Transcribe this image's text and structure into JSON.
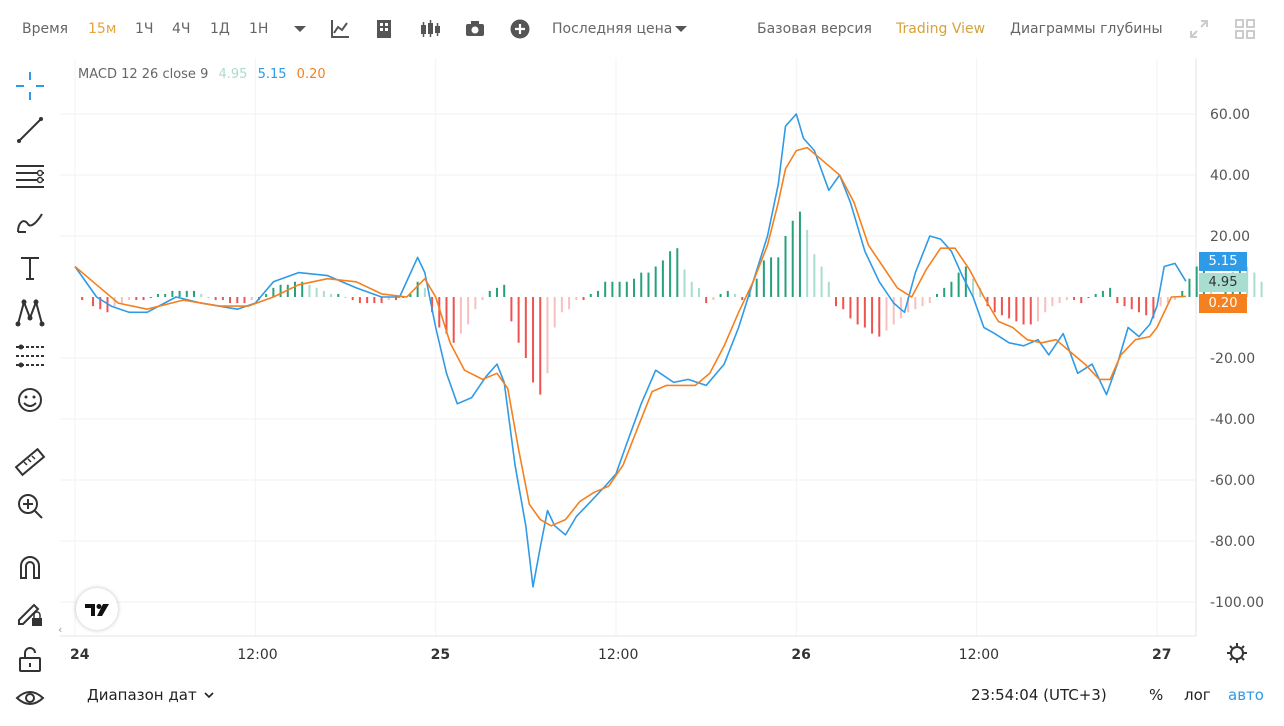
{
  "toolbar": {
    "time_label": "Время",
    "intervals": [
      "15м",
      "1Ч",
      "4Ч",
      "1Д",
      "1Н"
    ],
    "active_interval": "15м",
    "price_type": "Последняя цена",
    "views": [
      "Базовая версия",
      "Trading View",
      "Диаграммы глубины"
    ],
    "active_view": "Trading View"
  },
  "legend": {
    "indicator": "MACD 12 26 close 9",
    "hist_value": "4.95",
    "macd_value": "5.15",
    "signal_value": "0.20"
  },
  "price_tags": {
    "macd": "5.15",
    "hist": "4.95",
    "signal": "0.20"
  },
  "colors": {
    "macd_line": "#2f9be6",
    "signal_line": "#f5801f",
    "hist_pos_strong": "#26a17b",
    "hist_pos_weak": "#a9ddd0",
    "hist_neg_strong": "#ef5350",
    "hist_neg_weak": "#f7c0bf",
    "active": "#e8a33a"
  },
  "chart_data": {
    "type": "line",
    "y_ticks": [
      "60.00",
      "40.00",
      "20.00",
      "-20.00",
      "-40.00",
      "-60.00",
      "-80.00",
      "-100.00"
    ],
    "ylim": [
      -110,
      70
    ],
    "x_ticks": [
      "24",
      "12:00",
      "25",
      "12:00",
      "26",
      "12:00",
      "27"
    ],
    "x_tick_pos": [
      0,
      0.5,
      1,
      1.5,
      2,
      2.5,
      3
    ],
    "series": [
      {
        "name": "MACD",
        "values": [
          [
            0,
            10
          ],
          [
            0.06,
            0
          ],
          [
            0.1,
            -3
          ],
          [
            0.15,
            -5
          ],
          [
            0.2,
            -5
          ],
          [
            0.28,
            0
          ],
          [
            0.35,
            -2
          ],
          [
            0.45,
            -4
          ],
          [
            0.5,
            -2
          ],
          [
            0.55,
            5
          ],
          [
            0.62,
            8
          ],
          [
            0.7,
            7
          ],
          [
            0.78,
            3
          ],
          [
            0.85,
            0
          ],
          [
            0.9,
            0
          ],
          [
            0.95,
            13
          ],
          [
            0.97,
            8
          ],
          [
            1.0,
            -10
          ],
          [
            1.03,
            -25
          ],
          [
            1.06,
            -35
          ],
          [
            1.1,
            -33
          ],
          [
            1.14,
            -26
          ],
          [
            1.17,
            -22
          ],
          [
            1.19,
            -28
          ],
          [
            1.22,
            -55
          ],
          [
            1.25,
            -75
          ],
          [
            1.27,
            -95
          ],
          [
            1.29,
            -82
          ],
          [
            1.31,
            -70
          ],
          [
            1.33,
            -75
          ],
          [
            1.36,
            -78
          ],
          [
            1.39,
            -72
          ],
          [
            1.43,
            -67
          ],
          [
            1.47,
            -62
          ],
          [
            1.5,
            -58
          ],
          [
            1.53,
            -48
          ],
          [
            1.57,
            -35
          ],
          [
            1.61,
            -24
          ],
          [
            1.66,
            -28
          ],
          [
            1.7,
            -27
          ],
          [
            1.75,
            -29
          ],
          [
            1.8,
            -22
          ],
          [
            1.84,
            -10
          ],
          [
            1.88,
            5
          ],
          [
            1.92,
            20
          ],
          [
            1.95,
            37
          ],
          [
            1.97,
            56
          ],
          [
            2.0,
            60
          ],
          [
            2.02,
            52
          ],
          [
            2.05,
            48
          ],
          [
            2.09,
            35
          ],
          [
            2.12,
            40
          ],
          [
            2.15,
            31
          ],
          [
            2.19,
            15
          ],
          [
            2.23,
            5
          ],
          [
            2.27,
            -2
          ],
          [
            2.3,
            -5
          ],
          [
            2.33,
            8
          ],
          [
            2.37,
            20
          ],
          [
            2.4,
            19
          ],
          [
            2.43,
            15
          ],
          [
            2.46,
            7
          ],
          [
            2.49,
            0
          ],
          [
            2.52,
            -10
          ],
          [
            2.55,
            -12
          ],
          [
            2.59,
            -15
          ],
          [
            2.63,
            -16
          ],
          [
            2.67,
            -14
          ],
          [
            2.7,
            -19
          ],
          [
            2.74,
            -12
          ],
          [
            2.78,
            -25
          ],
          [
            2.82,
            -22
          ],
          [
            2.86,
            -32
          ],
          [
            2.89,
            -22
          ],
          [
            2.92,
            -10
          ],
          [
            2.95,
            -13
          ],
          [
            2.98,
            -9
          ],
          [
            3.0,
            -3
          ],
          [
            3.02,
            10
          ],
          [
            3.05,
            11
          ],
          [
            3.08,
            5.15
          ]
        ]
      },
      {
        "name": "Signal",
        "values": [
          [
            0,
            10
          ],
          [
            0.06,
            4
          ],
          [
            0.12,
            -2
          ],
          [
            0.2,
            -4
          ],
          [
            0.3,
            -1
          ],
          [
            0.4,
            -3
          ],
          [
            0.48,
            -3
          ],
          [
            0.55,
            0
          ],
          [
            0.62,
            4
          ],
          [
            0.7,
            6
          ],
          [
            0.78,
            5
          ],
          [
            0.85,
            1
          ],
          [
            0.92,
            0
          ],
          [
            0.97,
            6
          ],
          [
            1.0,
            0
          ],
          [
            1.04,
            -15
          ],
          [
            1.08,
            -24
          ],
          [
            1.13,
            -27
          ],
          [
            1.17,
            -25
          ],
          [
            1.2,
            -30
          ],
          [
            1.23,
            -50
          ],
          [
            1.26,
            -68
          ],
          [
            1.29,
            -73
          ],
          [
            1.32,
            -75
          ],
          [
            1.36,
            -73
          ],
          [
            1.4,
            -67
          ],
          [
            1.44,
            -64
          ],
          [
            1.48,
            -62
          ],
          [
            1.52,
            -55
          ],
          [
            1.56,
            -43
          ],
          [
            1.6,
            -31
          ],
          [
            1.64,
            -29
          ],
          [
            1.68,
            -29
          ],
          [
            1.72,
            -29
          ],
          [
            1.76,
            -25
          ],
          [
            1.8,
            -16
          ],
          [
            1.84,
            -5
          ],
          [
            1.88,
            5
          ],
          [
            1.92,
            17
          ],
          [
            1.95,
            31
          ],
          [
            1.97,
            42
          ],
          [
            2.0,
            48
          ],
          [
            2.03,
            49
          ],
          [
            2.06,
            46
          ],
          [
            2.09,
            43
          ],
          [
            2.12,
            40
          ],
          [
            2.16,
            31
          ],
          [
            2.2,
            17
          ],
          [
            2.24,
            10
          ],
          [
            2.28,
            3
          ],
          [
            2.32,
            0
          ],
          [
            2.36,
            9
          ],
          [
            2.4,
            16
          ],
          [
            2.44,
            16
          ],
          [
            2.48,
            9
          ],
          [
            2.52,
            0
          ],
          [
            2.56,
            -8
          ],
          [
            2.6,
            -10
          ],
          [
            2.64,
            -14
          ],
          [
            2.68,
            -15
          ],
          [
            2.72,
            -14
          ],
          [
            2.76,
            -18
          ],
          [
            2.8,
            -22
          ],
          [
            2.84,
            -27
          ],
          [
            2.87,
            -27
          ],
          [
            2.9,
            -19
          ],
          [
            2.94,
            -14
          ],
          [
            2.98,
            -13
          ],
          [
            3.0,
            -10
          ],
          [
            3.04,
            0
          ],
          [
            3.08,
            0.2
          ]
        ]
      }
    ],
    "histogram": [
      [
        0.02,
        -1
      ],
      [
        0.05,
        -3
      ],
      [
        0.07,
        -4
      ],
      [
        0.09,
        -5
      ],
      [
        0.11,
        -3
      ],
      [
        0.13,
        -2
      ],
      [
        0.15,
        -1
      ],
      [
        0.17,
        -1
      ],
      [
        0.19,
        -1
      ],
      [
        0.21,
        0
      ],
      [
        0.23,
        1
      ],
      [
        0.25,
        1
      ],
      [
        0.27,
        2
      ],
      [
        0.29,
        2
      ],
      [
        0.31,
        2
      ],
      [
        0.33,
        2
      ],
      [
        0.35,
        1
      ],
      [
        0.37,
        0
      ],
      [
        0.39,
        -1
      ],
      [
        0.41,
        -1
      ],
      [
        0.43,
        -2
      ],
      [
        0.45,
        -2
      ],
      [
        0.47,
        -2
      ],
      [
        0.49,
        -1
      ],
      [
        0.51,
        -1
      ],
      [
        0.53,
        1
      ],
      [
        0.55,
        3
      ],
      [
        0.57,
        4
      ],
      [
        0.59,
        4
      ],
      [
        0.61,
        5
      ],
      [
        0.63,
        5
      ],
      [
        0.65,
        4
      ],
      [
        0.67,
        3
      ],
      [
        0.69,
        2
      ],
      [
        0.71,
        1
      ],
      [
        0.73,
        1
      ],
      [
        0.75,
        0
      ],
      [
        0.77,
        -1
      ],
      [
        0.79,
        -2
      ],
      [
        0.81,
        -2
      ],
      [
        0.83,
        -2
      ],
      [
        0.85,
        -2
      ],
      [
        0.87,
        -1
      ],
      [
        0.89,
        -1
      ],
      [
        0.91,
        0
      ],
      [
        0.93,
        1
      ],
      [
        0.95,
        5
      ],
      [
        0.97,
        3
      ],
      [
        0.99,
        -5
      ],
      [
        1.01,
        -10
      ],
      [
        1.03,
        -12
      ],
      [
        1.05,
        -15
      ],
      [
        1.07,
        -12
      ],
      [
        1.09,
        -9
      ],
      [
        1.11,
        -4
      ],
      [
        1.13,
        -1
      ],
      [
        1.15,
        2
      ],
      [
        1.17,
        3
      ],
      [
        1.19,
        4
      ],
      [
        1.21,
        -8
      ],
      [
        1.23,
        -15
      ],
      [
        1.25,
        -20
      ],
      [
        1.27,
        -28
      ],
      [
        1.29,
        -32
      ],
      [
        1.31,
        -25
      ],
      [
        1.33,
        -10
      ],
      [
        1.35,
        -5
      ],
      [
        1.37,
        -4
      ],
      [
        1.39,
        -1
      ],
      [
        1.41,
        -1
      ],
      [
        1.43,
        1
      ],
      [
        1.45,
        2
      ],
      [
        1.47,
        5
      ],
      [
        1.49,
        5
      ],
      [
        1.51,
        5
      ],
      [
        1.53,
        5
      ],
      [
        1.55,
        6
      ],
      [
        1.57,
        8
      ],
      [
        1.59,
        8
      ],
      [
        1.61,
        10
      ],
      [
        1.63,
        12
      ],
      [
        1.65,
        15
      ],
      [
        1.67,
        16
      ],
      [
        1.69,
        9
      ],
      [
        1.71,
        5
      ],
      [
        1.73,
        3
      ],
      [
        1.75,
        -2
      ],
      [
        1.77,
        -1
      ],
      [
        1.79,
        1
      ],
      [
        1.81,
        2
      ],
      [
        1.83,
        1
      ],
      [
        1.85,
        -1
      ],
      [
        1.87,
        2
      ],
      [
        1.89,
        6
      ],
      [
        1.91,
        12
      ],
      [
        1.93,
        13
      ],
      [
        1.95,
        13
      ],
      [
        1.97,
        20
      ],
      [
        1.99,
        25
      ],
      [
        2.01,
        28
      ],
      [
        2.03,
        22
      ],
      [
        2.05,
        14
      ],
      [
        2.07,
        10
      ],
      [
        2.09,
        5
      ],
      [
        2.11,
        -3
      ],
      [
        2.13,
        -4
      ],
      [
        2.15,
        -7
      ],
      [
        2.17,
        -9
      ],
      [
        2.19,
        -10
      ],
      [
        2.21,
        -12
      ],
      [
        2.23,
        -13
      ],
      [
        2.25,
        -11
      ],
      [
        2.27,
        -9
      ],
      [
        2.29,
        -7
      ],
      [
        2.31,
        -5
      ],
      [
        2.33,
        -4
      ],
      [
        2.35,
        -3
      ],
      [
        2.37,
        -2
      ],
      [
        2.39,
        1
      ],
      [
        2.41,
        3
      ],
      [
        2.43,
        5
      ],
      [
        2.45,
        8
      ],
      [
        2.47,
        10
      ],
      [
        2.49,
        6
      ],
      [
        2.51,
        3
      ],
      [
        2.53,
        -3
      ],
      [
        2.55,
        -5
      ],
      [
        2.57,
        -6
      ],
      [
        2.59,
        -7
      ],
      [
        2.61,
        -8
      ],
      [
        2.63,
        -9
      ],
      [
        2.65,
        -9
      ],
      [
        2.67,
        -8
      ],
      [
        2.69,
        -5
      ],
      [
        2.71,
        -3
      ],
      [
        2.73,
        -2
      ],
      [
        2.75,
        -1
      ],
      [
        2.77,
        -1
      ],
      [
        2.79,
        -2
      ],
      [
        2.81,
        0
      ],
      [
        2.83,
        1
      ],
      [
        2.85,
        2
      ],
      [
        2.87,
        3
      ],
      [
        2.89,
        -2
      ],
      [
        2.91,
        -3
      ],
      [
        2.93,
        -4
      ],
      [
        2.95,
        -5
      ],
      [
        2.97,
        -6
      ],
      [
        2.99,
        -7
      ],
      [
        3.01,
        -3
      ],
      [
        3.03,
        -2
      ],
      [
        3.05,
        -1
      ],
      [
        3.07,
        2
      ],
      [
        3.09,
        6
      ],
      [
        3.11,
        10
      ],
      [
        3.13,
        11
      ],
      [
        3.15,
        4
      ],
      [
        3.17,
        -2
      ],
      [
        3.19,
        3
      ],
      [
        3.21,
        8
      ],
      [
        3.23,
        12
      ],
      [
        3.25,
        10
      ],
      [
        3.27,
        8
      ],
      [
        3.29,
        5
      ]
    ]
  },
  "bottombar": {
    "date_range": "Диапазон дат",
    "time": "23:54:04 (UTC+3)",
    "percent": "%",
    "log": "лог",
    "auto": "авто"
  }
}
